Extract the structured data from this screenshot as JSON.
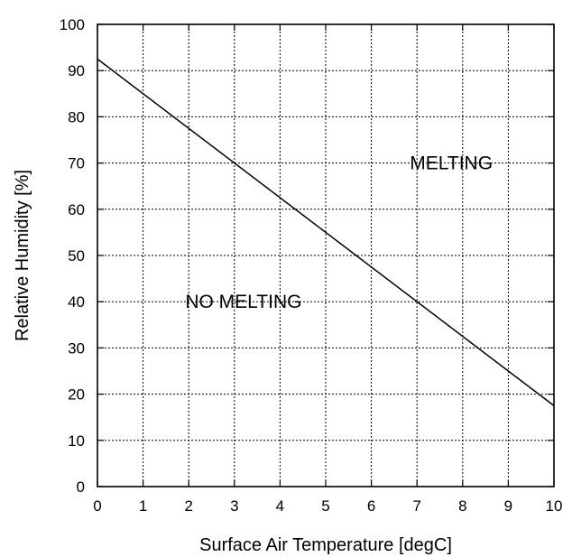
{
  "chart_data": {
    "type": "line",
    "title": "",
    "xlabel": "Surface Air Temperature [degC]",
    "ylabel": "Relative Humidity [%]",
    "xlim": [
      0,
      10
    ],
    "ylim": [
      0,
      100
    ],
    "x_ticks": [
      0,
      1,
      2,
      3,
      4,
      5,
      6,
      7,
      8,
      9,
      10
    ],
    "y_ticks": [
      0,
      10,
      20,
      30,
      40,
      50,
      60,
      70,
      80,
      90,
      100
    ],
    "grid": true,
    "series": [
      {
        "x": [
          0,
          10
        ],
        "y": [
          92.5,
          17.5
        ]
      }
    ],
    "annotations": [
      {
        "text": "MELTING",
        "x": 7.75,
        "y": 70
      },
      {
        "text": "NO MELTING",
        "x": 3.2,
        "y": 40
      }
    ]
  }
}
